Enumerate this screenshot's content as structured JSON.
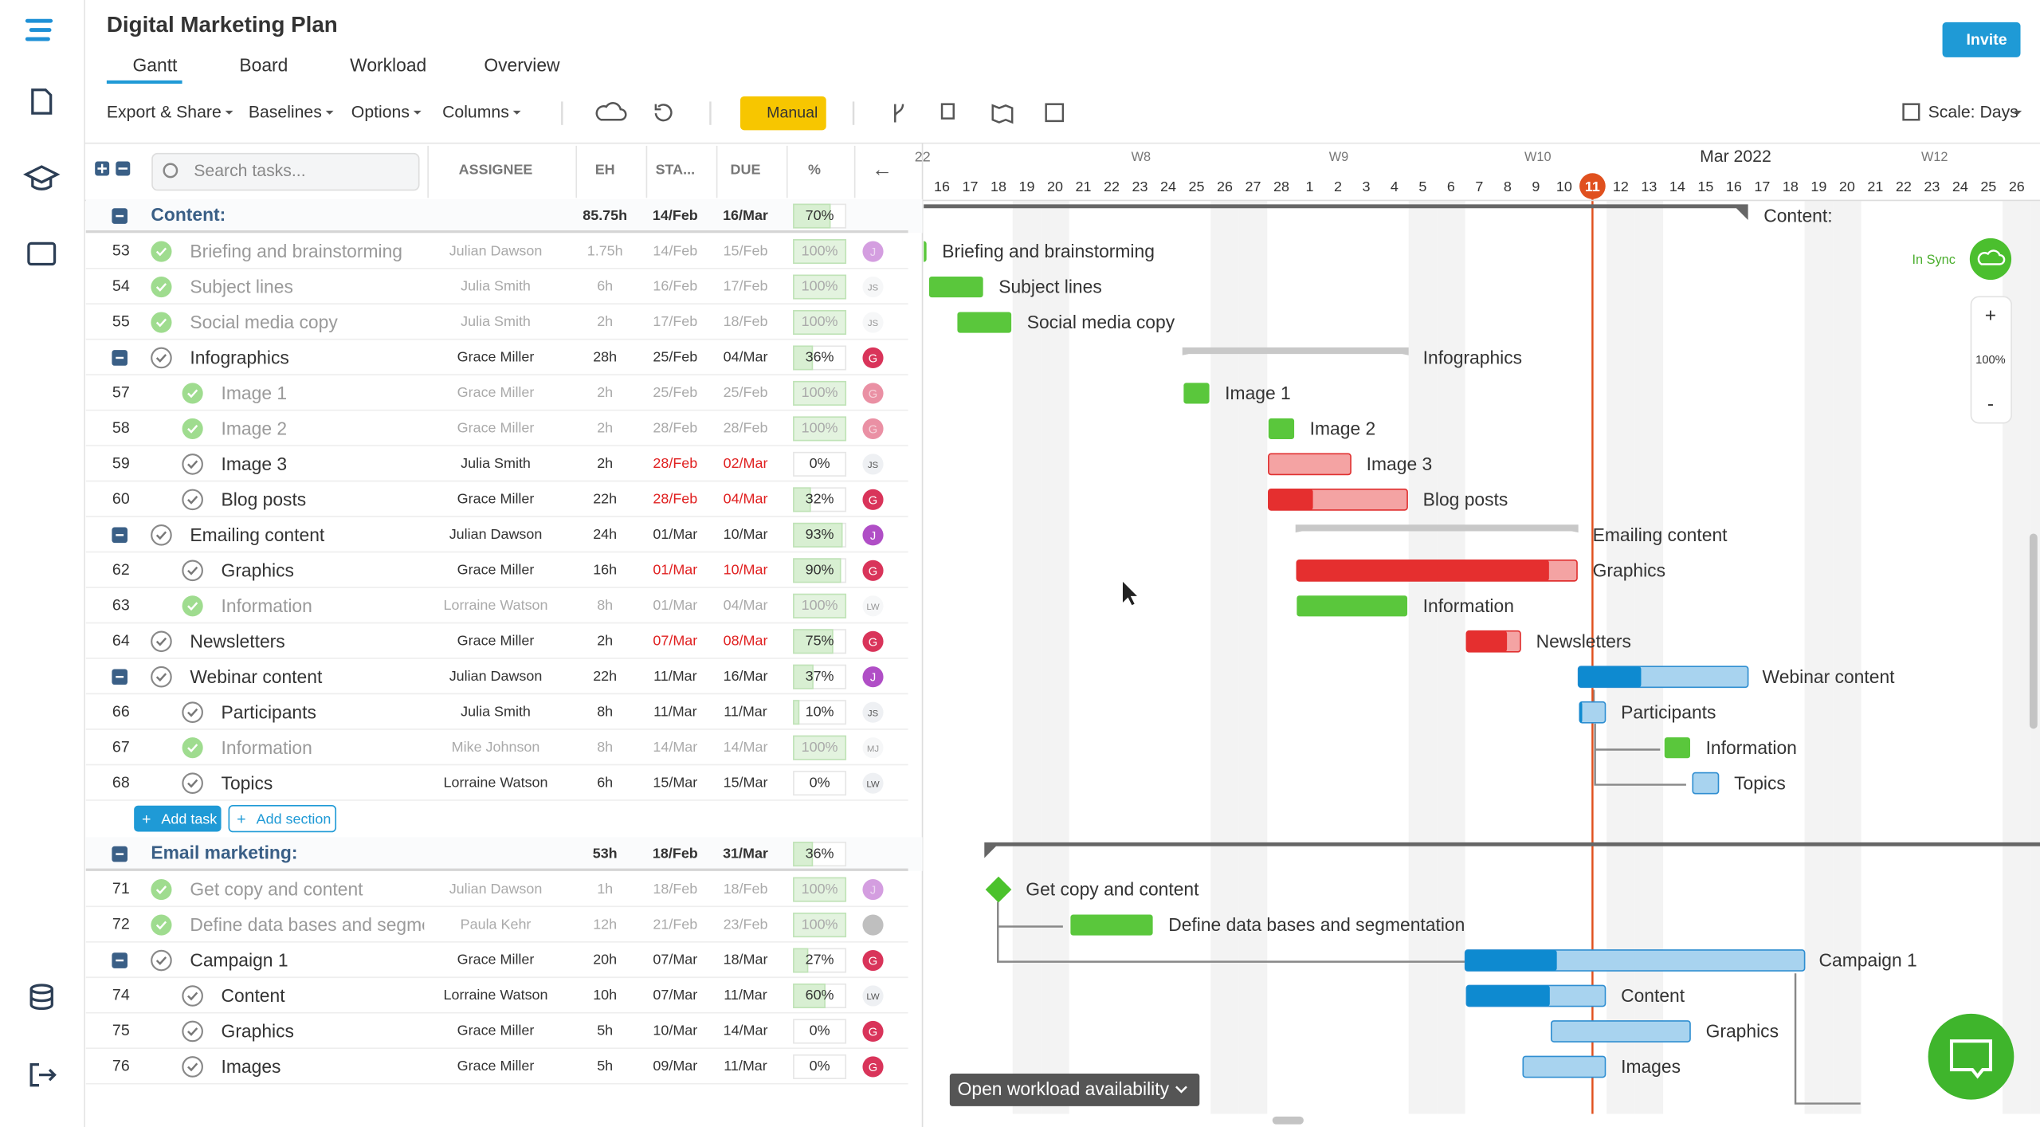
{
  "header": {
    "title": "Digital Marketing Plan",
    "invite": "Invite",
    "tabs": [
      "Gantt",
      "Board",
      "Workload",
      "Overview"
    ]
  },
  "toolbar": {
    "menus": [
      "Export & Share",
      "Baselines",
      "Options",
      "Columns"
    ],
    "mode": "Manual",
    "scale": "Scale: Days"
  },
  "table": {
    "search_placeholder": "Search tasks...",
    "columns": [
      "ASSIGNEE",
      "EH",
      "STA...",
      "DUE",
      "%"
    ],
    "add_task": "Add task",
    "add_section": "Add section",
    "sections": [
      {
        "name": "Content:",
        "eh": "85.75h",
        "start": "14/Feb",
        "due": "16/Mar",
        "pct": "70%",
        "rows": [
          {
            "num": "53",
            "name": "Briefing and brainstorming",
            "assignee": "Julian Dawson",
            "eh": "1.75h",
            "start": "14/Feb",
            "due": "15/Feb",
            "pct": "100%",
            "avatar": "J",
            "level": 1
          },
          {
            "num": "54",
            "name": "Subject lines",
            "assignee": "Julia Smith",
            "eh": "6h",
            "start": "16/Feb",
            "due": "17/Feb",
            "pct": "100%",
            "avatar": "JS",
            "level": 1
          },
          {
            "num": "55",
            "name": "Social media copy",
            "assignee": "Julia Smith",
            "eh": "2h",
            "start": "17/Feb",
            "due": "18/Feb",
            "pct": "100%",
            "avatar": "JS",
            "level": 1
          },
          {
            "num": null,
            "name": "Infographics",
            "assignee": "Grace Miller",
            "eh": "28h",
            "start": "25/Feb",
            "due": "04/Mar",
            "pct": "36%",
            "avatar": "G",
            "level": 1,
            "group": true
          },
          {
            "num": "57",
            "name": "Image 1",
            "assignee": "Grace Miller",
            "eh": "2h",
            "start": "25/Feb",
            "due": "25/Feb",
            "pct": "100%",
            "avatar": "G",
            "level": 2
          },
          {
            "num": "58",
            "name": "Image 2",
            "assignee": "Grace Miller",
            "eh": "2h",
            "start": "28/Feb",
            "due": "28/Feb",
            "pct": "100%",
            "avatar": "G",
            "level": 2
          },
          {
            "num": "59",
            "name": "Image 3",
            "assignee": "Julia Smith",
            "eh": "2h",
            "start": "28/Feb",
            "due": "02/Mar",
            "pct": "0%",
            "avatar": "JS",
            "level": 2,
            "overdue": true
          },
          {
            "num": "60",
            "name": "Blog posts",
            "assignee": "Grace Miller",
            "eh": "22h",
            "start": "28/Feb",
            "due": "04/Mar",
            "pct": "32%",
            "avatar": "G",
            "level": 2,
            "overdue": true
          },
          {
            "num": null,
            "name": "Emailing content",
            "assignee": "Julian Dawson",
            "eh": "24h",
            "start": "01/Mar",
            "due": "10/Mar",
            "pct": "93%",
            "avatar": "J",
            "level": 1,
            "group": true
          },
          {
            "num": "62",
            "name": "Graphics",
            "assignee": "Grace Miller",
            "eh": "16h",
            "start": "01/Mar",
            "due": "10/Mar",
            "pct": "90%",
            "avatar": "G",
            "level": 2,
            "overdue": true
          },
          {
            "num": "63",
            "name": "Information",
            "assignee": "Lorraine Watson",
            "eh": "8h",
            "start": "01/Mar",
            "due": "04/Mar",
            "pct": "100%",
            "avatar": "LW",
            "level": 2
          },
          {
            "num": "64",
            "name": "Newsletters",
            "assignee": "Grace Miller",
            "eh": "2h",
            "start": "07/Mar",
            "due": "08/Mar",
            "pct": "75%",
            "avatar": "G",
            "level": 1,
            "overdue": true
          },
          {
            "num": null,
            "name": "Webinar content",
            "assignee": "Julian Dawson",
            "eh": "22h",
            "start": "11/Mar",
            "due": "16/Mar",
            "pct": "37%",
            "avatar": "J",
            "level": 1,
            "group": true
          },
          {
            "num": "66",
            "name": "Participants",
            "assignee": "Julia Smith",
            "eh": "8h",
            "start": "11/Mar",
            "due": "11/Mar",
            "pct": "10%",
            "avatar": "JS",
            "level": 2
          },
          {
            "num": "67",
            "name": "Information",
            "assignee": "Mike Johnson",
            "eh": "8h",
            "start": "14/Mar",
            "due": "14/Mar",
            "pct": "100%",
            "avatar": "MJ",
            "level": 2
          },
          {
            "num": "68",
            "name": "Topics",
            "assignee": "Lorraine Watson",
            "eh": "6h",
            "start": "15/Mar",
            "due": "15/Mar",
            "pct": "0%",
            "avatar": "LW",
            "level": 2
          }
        ]
      },
      {
        "name": "Email marketing:",
        "eh": "53h",
        "start": "18/Feb",
        "due": "31/Mar",
        "pct": "36%",
        "rows": [
          {
            "num": "71",
            "name": "Get copy and content",
            "assignee": "Julian Dawson",
            "eh": "1h",
            "start": "18/Feb",
            "due": "18/Feb",
            "pct": "100%",
            "avatar": "J",
            "level": 1
          },
          {
            "num": "72",
            "name": "Define data bases and segmentation",
            "assignee": "Paula Kehr",
            "eh": "12h",
            "start": "21/Feb",
            "due": "23/Feb",
            "pct": "100%",
            "avatar": null,
            "level": 1
          },
          {
            "num": null,
            "name": "Campaign 1",
            "assignee": "Grace Miller",
            "eh": "20h",
            "start": "07/Mar",
            "due": "18/Mar",
            "pct": "27%",
            "avatar": "G",
            "level": 1,
            "group": true
          },
          {
            "num": "74",
            "name": "Content",
            "assignee": "Lorraine Watson",
            "eh": "10h",
            "start": "07/Mar",
            "due": "11/Mar",
            "pct": "60%",
            "avatar": "LW",
            "level": 2
          },
          {
            "num": "75",
            "name": "Graphics",
            "assignee": "Grace Miller",
            "eh": "5h",
            "start": "10/Mar",
            "due": "14/Mar",
            "pct": "0%",
            "avatar": "G",
            "level": 2
          },
          {
            "num": "76",
            "name": "Images",
            "assignee": "Grace Miller",
            "eh": "5h",
            "start": "09/Mar",
            "due": "11/Mar",
            "pct": "0%",
            "avatar": "G",
            "level": 2
          }
        ]
      }
    ]
  },
  "timeline": {
    "months": [
      "22",
      "Mar 2022"
    ],
    "weeks": [
      "W8",
      "W9",
      "W10",
      "W12"
    ],
    "days": [
      "16",
      "17",
      "18",
      "19",
      "20",
      "21",
      "22",
      "23",
      "24",
      "25",
      "26",
      "27",
      "28",
      "1",
      "2",
      "3",
      "4",
      "5",
      "6",
      "7",
      "8",
      "9",
      "10",
      "11",
      "12",
      "13",
      "14",
      "15",
      "16",
      "17",
      "18",
      "19",
      "20",
      "21",
      "22",
      "23",
      "24",
      "25",
      "26"
    ],
    "in_sync": "In Sync",
    "zoom": "100%",
    "zoom_in": "+",
    "zoom_out": "-",
    "workload": "Open workload availability"
  }
}
